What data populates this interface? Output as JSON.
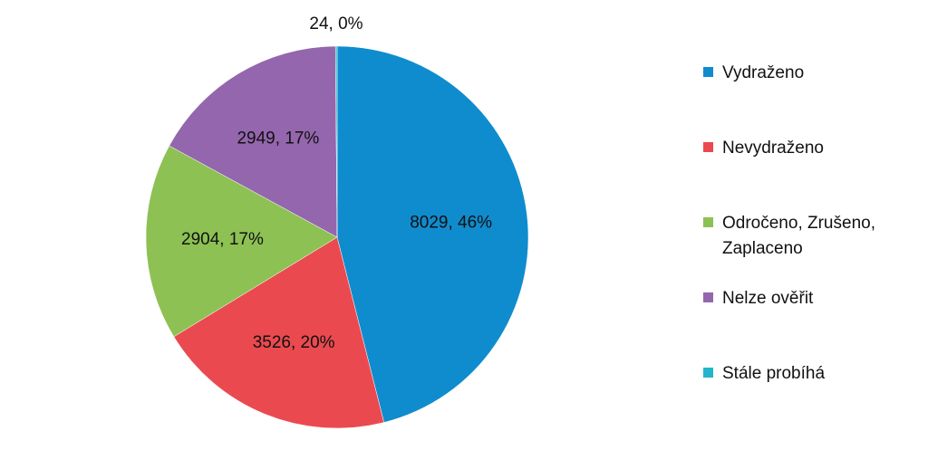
{
  "chart_data": {
    "type": "pie",
    "categories": [
      "Vydraženo",
      "Nevydraženo",
      "Odročeno, Zrušeno, Zaplaceno",
      "Nelze ověřit",
      "Stále probíhá"
    ],
    "values": [
      8029,
      3526,
      2904,
      2949,
      24
    ],
    "value_labels": [
      "8029, 46%",
      "3526, 20%",
      "2904, 17%",
      "2949, 17%",
      "24, 0%"
    ],
    "colors": [
      "#0f8ccd",
      "#ea4a4f",
      "#8dc153",
      "#9466ad",
      "#22b5cb"
    ],
    "legend": "right"
  }
}
